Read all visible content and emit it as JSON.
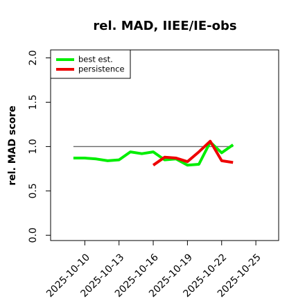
{
  "chart_data": {
    "type": "line",
    "title": "rel. MAD, IIEE/IE-obs",
    "y_label": "rel. MAD score",
    "x": [
      "2025-10-09",
      "2025-10-10",
      "2025-10-11",
      "2025-10-12",
      "2025-10-13",
      "2025-10-14",
      "2025-10-15",
      "2025-10-16",
      "2025-10-17",
      "2025-10-18",
      "2025-10-19",
      "2025-10-20",
      "2025-10-21",
      "2025-10-22",
      "2025-10-23"
    ],
    "series": [
      {
        "name": "best est.",
        "color": "#00ee00",
        "values": [
          0.87,
          0.87,
          0.86,
          0.84,
          0.85,
          0.94,
          0.92,
          0.94,
          0.85,
          0.86,
          0.79,
          0.8,
          1.05,
          0.93,
          1.02
        ]
      },
      {
        "name": "persistence",
        "color": "#ee0000",
        "values": [
          null,
          null,
          null,
          null,
          null,
          null,
          null,
          0.79,
          0.88,
          0.87,
          0.83,
          0.94,
          1.06,
          0.84,
          0.82
        ]
      }
    ],
    "reference_line": {
      "value": 1.0,
      "color": "#666666"
    },
    "xlim": [
      "2025-10-07",
      "2025-10-27"
    ],
    "xticks": [
      "2025-10-10",
      "2025-10-13",
      "2025-10-16",
      "2025-10-19",
      "2025-10-22",
      "2025-10-25"
    ],
    "ylim": [
      -0.06,
      2.09
    ],
    "yticks": [
      {
        "value": 0,
        "label": "0.0"
      },
      {
        "value": 0.5,
        "label": "0.5"
      },
      {
        "value": 1,
        "label": "1.0"
      },
      {
        "value": 1.5,
        "label": "1.5"
      },
      {
        "value": 2,
        "label": "2.0"
      }
    ],
    "legend": "top-left"
  }
}
